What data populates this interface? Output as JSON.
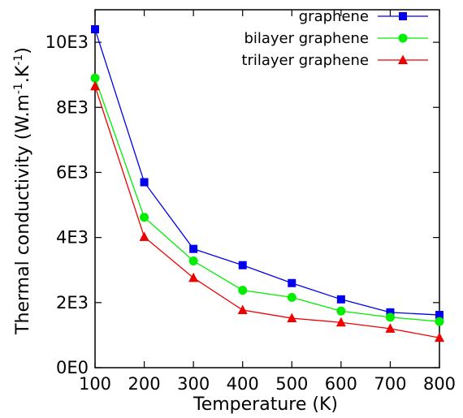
{
  "chart_data": {
    "type": "line",
    "x": [
      100,
      200,
      300,
      400,
      500,
      600,
      700,
      800
    ],
    "xlim": [
      100,
      800
    ],
    "ylim": [
      0,
      11000
    ],
    "xticks": [
      100,
      200,
      300,
      400,
      500,
      600,
      700,
      800
    ],
    "yticks": [
      {
        "value": 0,
        "label": "0E0"
      },
      {
        "value": 2000,
        "label": "2E3"
      },
      {
        "value": 4000,
        "label": "4E3"
      },
      {
        "value": 6000,
        "label": "6E3"
      },
      {
        "value": 8000,
        "label": "8E3"
      },
      {
        "value": 10000,
        "label": "10E3"
      }
    ],
    "xlabel": "Temperature (K)",
    "ylabel": {
      "main": "Thermal conductivity (W.m",
      "sup1": "-1",
      "mid": ".K",
      "sup2": "-1",
      "end": ")"
    },
    "grid": false,
    "legend_position": "top-right",
    "series": [
      {
        "name": "graphene",
        "color": "#0000ee",
        "marker": "square",
        "values": [
          10400,
          5700,
          3650,
          3150,
          2600,
          2100,
          1700,
          1620
        ]
      },
      {
        "name": "bilayer graphene",
        "color": "#00ee00",
        "marker": "circle",
        "values": [
          8900,
          4620,
          3280,
          2380,
          2160,
          1740,
          1550,
          1420
        ]
      },
      {
        "name": "trilayer graphene",
        "color": "#ee0000",
        "marker": "triangle",
        "values": [
          8650,
          4020,
          2760,
          1770,
          1520,
          1390,
          1200,
          920
        ]
      }
    ]
  }
}
